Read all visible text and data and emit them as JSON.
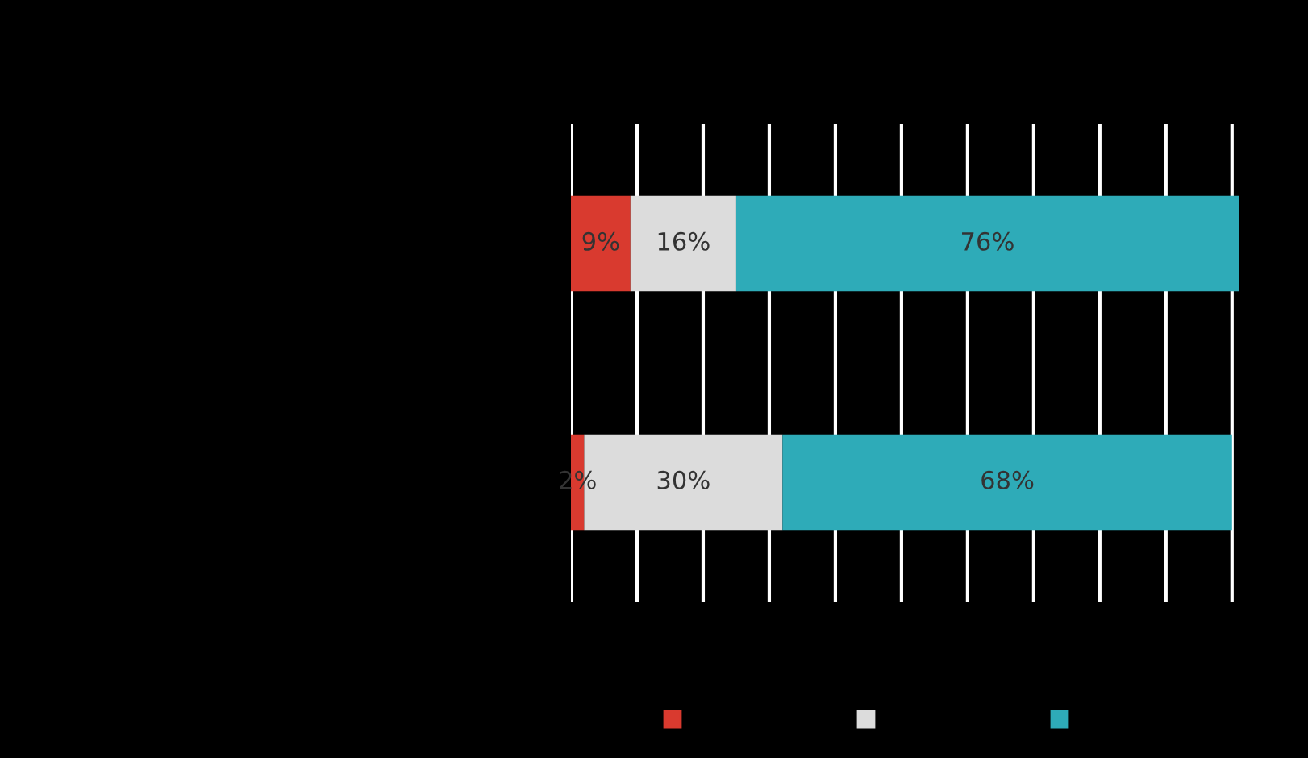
{
  "chart_data": {
    "type": "bar",
    "orientation": "horizontal",
    "stacked": true,
    "categories": [
      null,
      null
    ],
    "series": [
      {
        "color": "#d93a2f",
        "values": [
          9,
          2
        ],
        "value_labels": [
          "9%",
          "2%"
        ]
      },
      {
        "color": "#dcdcdc",
        "values": [
          16,
          30
        ],
        "value_labels": [
          "16%",
          "30%"
        ]
      },
      {
        "color": "#2eabb8",
        "values": [
          76,
          68
        ],
        "value_labels": [
          "76%",
          "68%"
        ]
      }
    ],
    "xlim": [
      0,
      101
    ],
    "xticks": [
      {
        "value": 0,
        "label": null
      },
      {
        "value": 10,
        "label": null
      },
      {
        "value": 20,
        "label": null
      },
      {
        "value": 30,
        "label": null
      },
      {
        "value": 40,
        "label": null
      },
      {
        "value": 50,
        "label": null
      },
      {
        "value": 60,
        "label": null
      },
      {
        "value": 70,
        "label": null
      },
      {
        "value": 80,
        "label": null
      },
      {
        "value": 90,
        "label": null
      },
      {
        "value": 100,
        "label": null
      }
    ],
    "grid": "x"
  }
}
